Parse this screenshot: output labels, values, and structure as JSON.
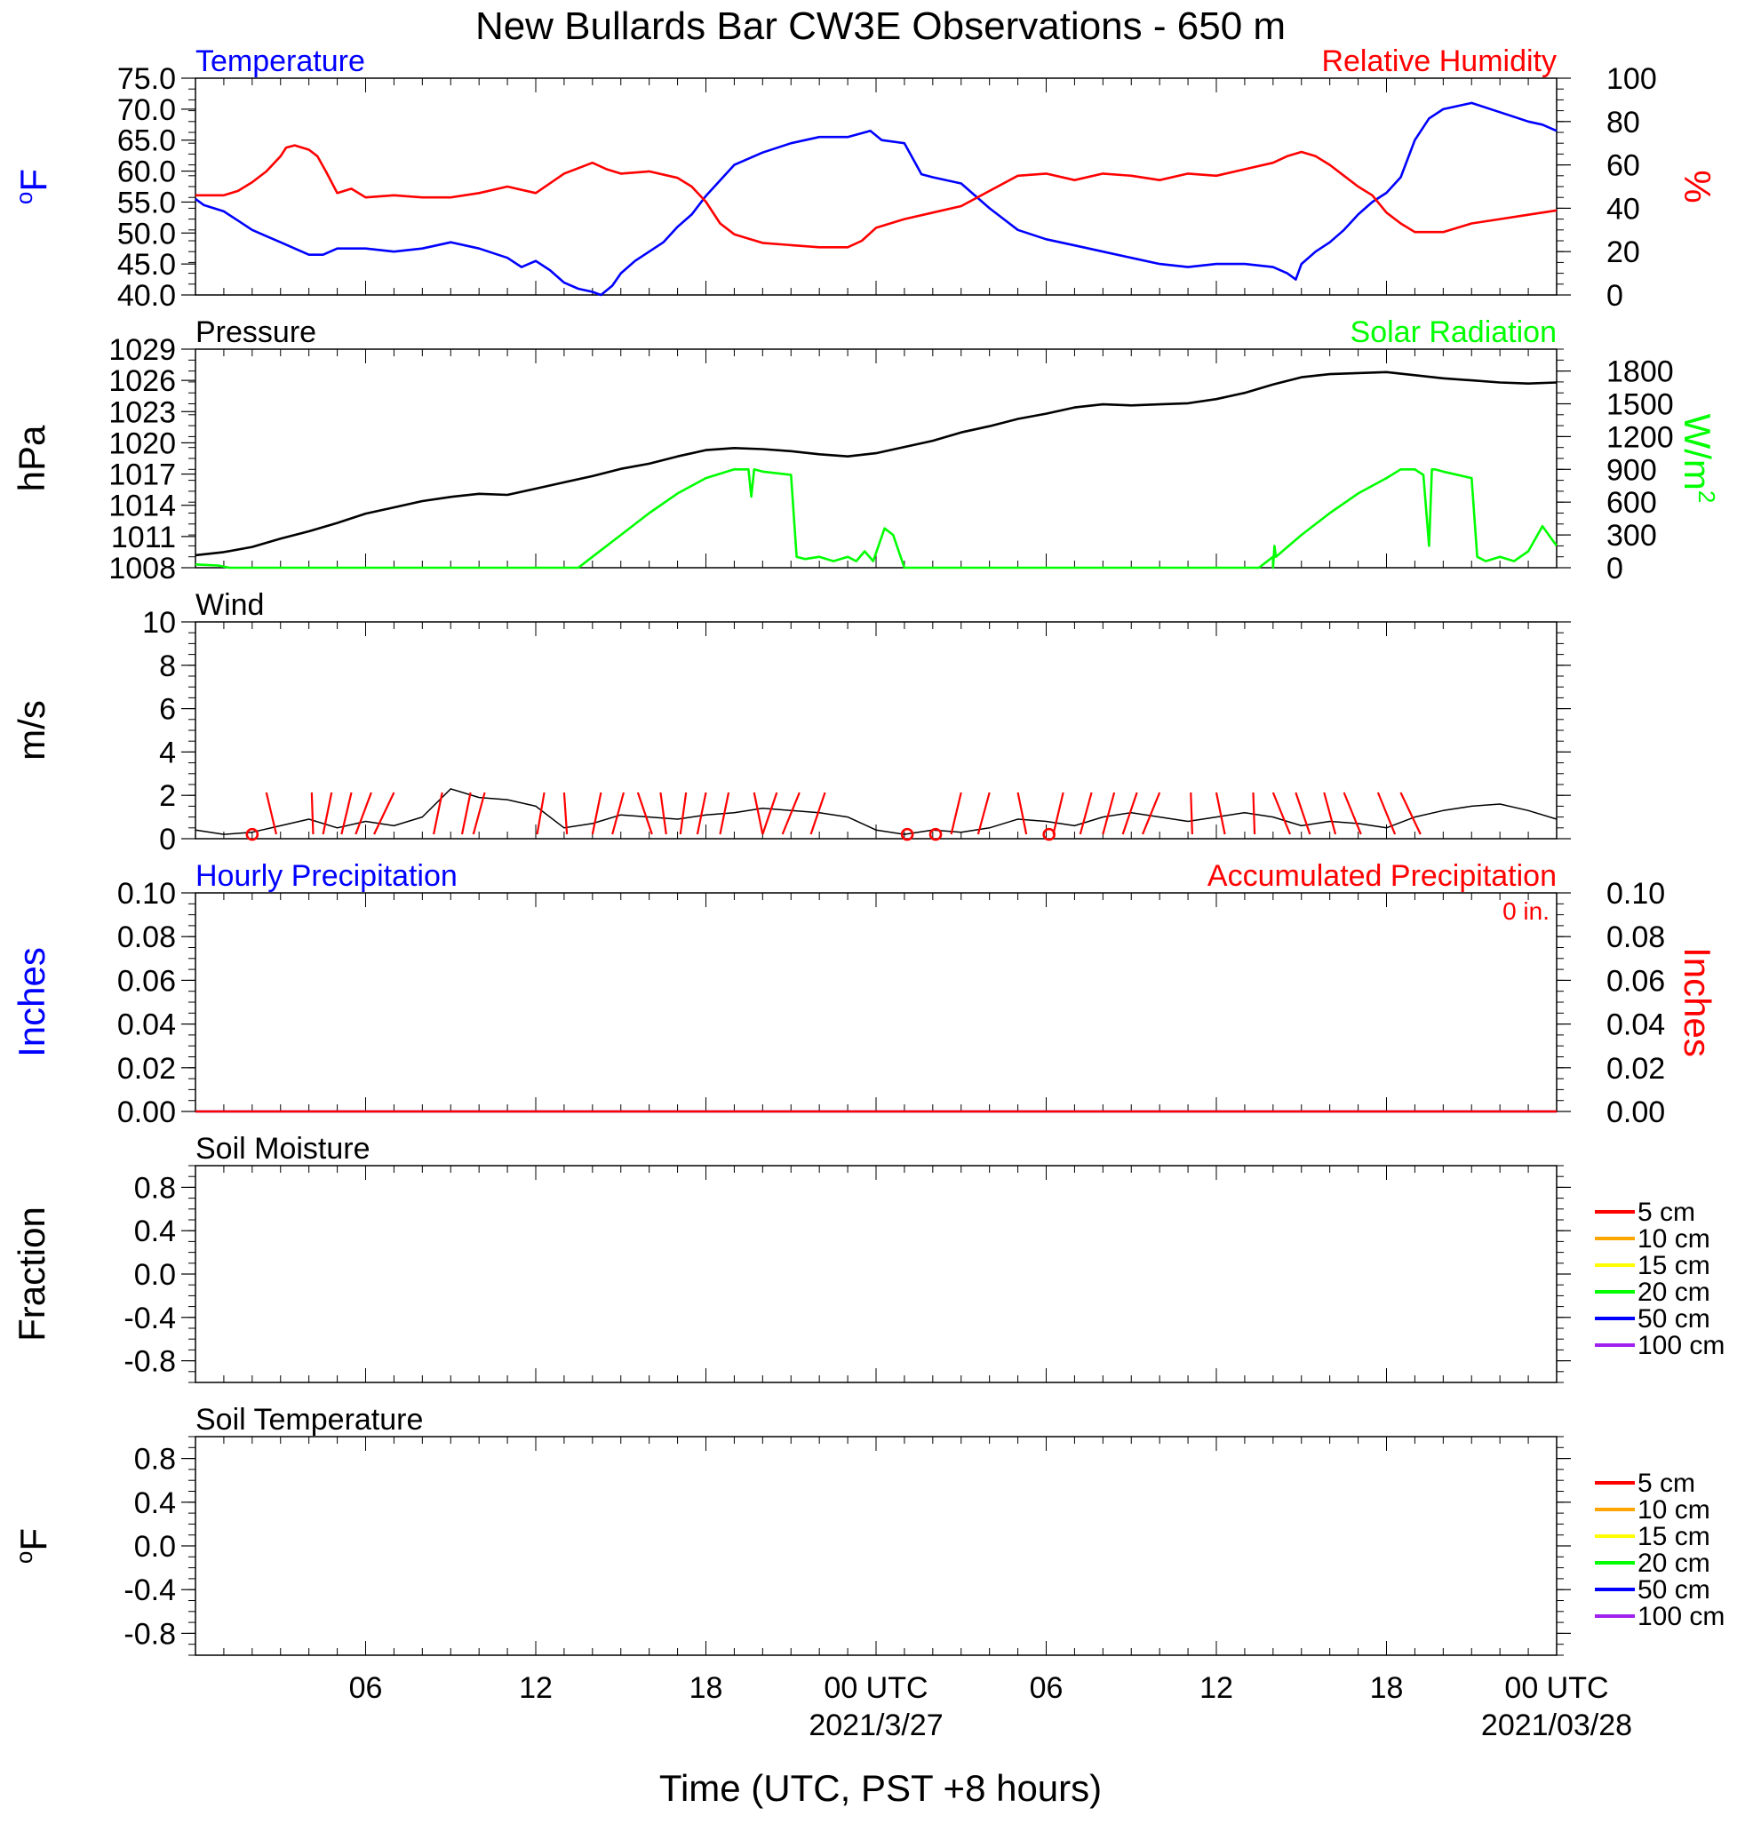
{
  "title": "New Bullards Bar CW3E Observations - 650 m",
  "xlabel": "Time (UTC, PST +8 hours)",
  "x_axis": {
    "unit": "hours since 2021-03-26 00 UTC",
    "range": [
      0,
      48
    ],
    "tick_hours": [
      6,
      12,
      18,
      24,
      30,
      36,
      42,
      48
    ],
    "tick_labels": [
      "06",
      "12",
      "18",
      "00 UTC",
      "06",
      "12",
      "18",
      "00 UTC"
    ],
    "date_labels": [
      {
        "hour": 24,
        "text": "2021/3/27"
      },
      {
        "hour": 48,
        "text": "2021/03/28"
      }
    ]
  },
  "colors": {
    "temperature": "#0000ff",
    "humidity": "#ff0000",
    "pressure": "#000000",
    "solar": "#00ff00",
    "wind": "#000000",
    "barb": "#ff0000",
    "precip_hourly": "#0000ff",
    "precip_accum": "#ff0000",
    "soil_5": "#ff0000",
    "soil_10": "#ffa500",
    "soil_15": "#ffff00",
    "soil_20": "#00ff00",
    "soil_50": "#0000ff",
    "soil_100": "#a020f0"
  },
  "chart_data": [
    {
      "id": "temp-rh",
      "type": "line",
      "left_title": "Temperature",
      "right_title": "Relative Humidity",
      "left_ylabel": "oF",
      "right_ylabel": "%",
      "left_ylim": [
        40,
        75
      ],
      "left_ticks": [
        "40.0",
        "45.0",
        "50.0",
        "55.0",
        "60.0",
        "65.0",
        "70.0",
        "75.0"
      ],
      "right_ylim": [
        0,
        100
      ],
      "right_ticks": [
        "0",
        "20",
        "40",
        "60",
        "80",
        "100"
      ],
      "series": [
        {
          "key": "temperature",
          "axis": "left",
          "x": [
            0,
            0.3,
            1,
            1.5,
            2,
            2.5,
            3,
            3.5,
            4,
            4.5,
            5,
            6,
            7,
            8,
            9,
            10,
            11,
            11.5,
            12,
            12.5,
            13,
            13.5,
            14,
            14.3,
            14.7,
            15,
            15.5,
            16,
            16.5,
            17,
            17.5,
            18,
            18.5,
            19,
            20,
            21,
            22,
            23,
            23.8,
            24.2,
            25,
            25.3,
            25.6,
            26,
            27,
            28,
            29,
            30,
            31,
            32,
            33,
            34,
            35,
            36,
            37,
            38,
            38.5,
            38.8,
            39,
            39.5,
            40,
            40.5,
            41,
            41.5,
            42,
            42.5,
            43,
            43.5,
            44,
            44.5,
            45,
            46,
            47,
            47.5,
            48
          ],
          "y": [
            55.5,
            54.5,
            53.5,
            52,
            50.5,
            49.5,
            48.5,
            47.5,
            46.5,
            46.5,
            47.5,
            47.5,
            47,
            47.5,
            48.5,
            47.5,
            46,
            44.5,
            45.5,
            44,
            42,
            41,
            40.5,
            40,
            41.5,
            43.5,
            45.5,
            47,
            48.5,
            51,
            53,
            56,
            58.5,
            61,
            63,
            64.5,
            65.5,
            65.5,
            66.5,
            65,
            64.5,
            62,
            59.5,
            59,
            58,
            54,
            50.5,
            49,
            48,
            47,
            46,
            45,
            44.5,
            45,
            45,
            44.5,
            43.5,
            42.5,
            45,
            47,
            48.5,
            50.5,
            53,
            55,
            56.5,
            59,
            65,
            68.5,
            70,
            70.5,
            71,
            69.5,
            68,
            67.5,
            66.5
          ]
        },
        {
          "key": "humidity",
          "axis": "right",
          "x": [
            0,
            1,
            1.5,
            2,
            2.5,
            3,
            3.2,
            3.5,
            4,
            4.3,
            4.6,
            5,
            5.5,
            6,
            7,
            8,
            9,
            10,
            11,
            12,
            13,
            14,
            14.5,
            15,
            16,
            17,
            17.5,
            18,
            18.5,
            19,
            20,
            21,
            22,
            22.5,
            23,
            23.5,
            24,
            25,
            26,
            27,
            28,
            29,
            30,
            31,
            32,
            33,
            34,
            35,
            36,
            37,
            38,
            38.5,
            39,
            39.5,
            40,
            40.5,
            41,
            41.5,
            42,
            42.5,
            43,
            44,
            45,
            46,
            47,
            48
          ],
          "y": [
            46,
            46,
            48,
            52,
            57,
            64,
            68,
            69,
            67,
            64,
            57,
            47,
            49,
            45,
            46,
            45,
            45,
            47,
            50,
            47,
            56,
            61,
            58,
            56,
            57,
            54,
            50,
            43,
            33,
            28,
            24,
            23,
            22,
            22,
            22,
            25,
            31,
            35,
            38,
            41,
            48,
            55,
            56,
            53,
            56,
            55,
            53,
            56,
            55,
            58,
            61,
            64,
            66,
            64,
            60,
            55,
            50,
            46,
            38,
            33,
            29,
            29,
            33,
            35,
            37,
            39
          ]
        }
      ]
    },
    {
      "id": "pressure-solar",
      "type": "line",
      "left_title": "Pressure",
      "right_title": "Solar Radiation",
      "left_ylabel": "hPa",
      "right_ylabel": "W/m",
      "right_ylabel_sup": "2",
      "left_ylim": [
        1008,
        1029
      ],
      "left_ticks": [
        "1008",
        "1011",
        "1014",
        "1017",
        "1020",
        "1023",
        "1026",
        "1029"
      ],
      "right_ylim": [
        0,
        2000
      ],
      "right_ticks": [
        "0",
        "300",
        "600",
        "900",
        "1200",
        "1500",
        "1800"
      ],
      "series": [
        {
          "key": "pressure",
          "axis": "left",
          "x": [
            0,
            1,
            2,
            3,
            4,
            5,
            6,
            7,
            8,
            9,
            10,
            11,
            12,
            13,
            14,
            15,
            16,
            17,
            18,
            19,
            20,
            21,
            22,
            23,
            24,
            25,
            26,
            27,
            28,
            29,
            30,
            31,
            32,
            33,
            34,
            35,
            36,
            37,
            38,
            39,
            40,
            41,
            42,
            43,
            44,
            45,
            46,
            47,
            48
          ],
          "y": [
            1009.2,
            1009.5,
            1010,
            1010.8,
            1011.5,
            1012.3,
            1013.2,
            1013.8,
            1014.4,
            1014.8,
            1015.1,
            1015.0,
            1015.6,
            1016.2,
            1016.8,
            1017.5,
            1018.0,
            1018.7,
            1019.3,
            1019.5,
            1019.4,
            1019.2,
            1018.9,
            1018.7,
            1019.0,
            1019.6,
            1020.2,
            1021.0,
            1021.6,
            1022.3,
            1022.8,
            1023.4,
            1023.7,
            1023.6,
            1023.7,
            1023.8,
            1024.2,
            1024.8,
            1025.6,
            1026.3,
            1026.6,
            1026.7,
            1026.8,
            1026.5,
            1026.2,
            1026.0,
            1025.8,
            1025.7,
            1025.8
          ]
        },
        {
          "key": "solar",
          "axis": "right",
          "x": [
            0,
            0.8,
            1.2,
            13.5,
            14,
            15,
            16,
            17,
            18,
            19,
            19.5,
            19.6,
            19.7,
            20,
            21,
            21.2,
            21.5,
            22,
            22.5,
            23,
            23.3,
            23.6,
            23.9,
            24.3,
            24.6,
            25,
            26,
            37.5,
            38,
            38,
            38.05,
            38.1,
            39,
            40,
            41,
            42,
            42.5,
            43,
            43.3,
            43.5,
            43.6,
            43.7,
            44,
            45,
            45.2,
            45.5,
            46,
            46.5,
            47,
            47.5,
            48
          ],
          "y": [
            30,
            20,
            0,
            0,
            100,
            300,
            500,
            680,
            820,
            900,
            900,
            650,
            900,
            880,
            850,
            100,
            80,
            100,
            60,
            100,
            60,
            150,
            60,
            360,
            300,
            0,
            0,
            0,
            100,
            0,
            200,
            100,
            300,
            500,
            680,
            820,
            900,
            900,
            850,
            200,
            900,
            900,
            880,
            820,
            100,
            60,
            100,
            60,
            150,
            380,
            200
          ]
        }
      ]
    },
    {
      "id": "wind",
      "type": "line",
      "left_title": "Wind",
      "left_ylabel": "m/s",
      "left_ylim": [
        0,
        10
      ],
      "left_ticks": [
        "0",
        "2",
        "4",
        "6",
        "8",
        "10"
      ],
      "series": [
        {
          "key": "wind",
          "axis": "left",
          "x": [
            0,
            1,
            2,
            3,
            4,
            5,
            6,
            7,
            8,
            9,
            10,
            11,
            12,
            13,
            14,
            15,
            16,
            17,
            18,
            19,
            20,
            21,
            22,
            23,
            24,
            25,
            26,
            27,
            28,
            29,
            30,
            31,
            32,
            33,
            34,
            35,
            36,
            37,
            38,
            39,
            40,
            41,
            42,
            43,
            44,
            45,
            46,
            47,
            48
          ],
          "y": [
            0.4,
            0.2,
            0.3,
            0.6,
            0.9,
            0.5,
            0.8,
            0.6,
            1.0,
            2.3,
            1.9,
            1.8,
            1.5,
            0.5,
            0.7,
            1.1,
            1.0,
            0.9,
            1.1,
            1.2,
            1.4,
            1.3,
            1.2,
            1.0,
            0.4,
            0.2,
            0.4,
            0.3,
            0.5,
            0.9,
            0.8,
            0.6,
            1.0,
            1.2,
            1.0,
            0.8,
            1.0,
            1.2,
            1.0,
            0.6,
            0.8,
            0.7,
            0.5,
            1.0,
            1.3,
            1.5,
            1.6,
            1.3,
            0.9
          ]
        }
      ],
      "barbs_dx_hours": [
        0.35,
        0.05,
        -0.3,
        -0.35,
        -0.55,
        -0.7,
        -0.3,
        -0.3,
        -0.4,
        -0.25,
        0.1,
        -0.3,
        -0.4,
        0.5,
        0.2,
        -0.2,
        -0.3,
        -0.3,
        0.3,
        -0.5,
        -0.6,
        -0.5,
        -0.35,
        -0.4,
        0.3,
        -0.35,
        -0.4,
        -0.4,
        -0.5,
        -0.6,
        0.05,
        0.3,
        0.05,
        0.6,
        0.5,
        0.4,
        0.6,
        0.6,
        0.7
      ],
      "barbs_x_hours": [
        2.5,
        4.1,
        4.8,
        5.5,
        6.2,
        7.0,
        8.7,
        9.7,
        10.2,
        12.3,
        13.0,
        14.3,
        15.1,
        15.6,
        16.4,
        17.3,
        18.0,
        18.8,
        19.7,
        20.5,
        21.3,
        22.2,
        27.0,
        28.0,
        29.0,
        30.6,
        31.6,
        32.4,
        33.2,
        34.0,
        35.1,
        36.0,
        37.3,
        38.0,
        38.8,
        39.8,
        40.5,
        41.7,
        42.5
      ],
      "calm_x_hours": [
        2.0,
        25.1,
        26.1,
        30.1
      ]
    },
    {
      "id": "precip",
      "type": "line",
      "left_title": "Hourly Precipitation",
      "right_title": "Accumulated Precipitation",
      "annotation": "0 in.",
      "left_ylabel": "Inches",
      "right_ylabel": "Inches",
      "left_ylim": [
        0,
        0.1
      ],
      "left_ticks": [
        "0.00",
        "0.02",
        "0.04",
        "0.06",
        "0.08",
        "0.10"
      ],
      "right_ylim": [
        0,
        0.1
      ],
      "right_ticks": [
        "0.00",
        "0.02",
        "0.04",
        "0.06",
        "0.08",
        "0.10"
      ],
      "series": [
        {
          "key": "precip_hourly",
          "axis": "left",
          "x": [
            0,
            48
          ],
          "y": [
            0,
            0
          ]
        },
        {
          "key": "precip_accum",
          "axis": "right",
          "x": [
            0,
            48
          ],
          "y": [
            0,
            0
          ]
        }
      ]
    },
    {
      "id": "soil-moisture",
      "type": "line",
      "left_title": "Soil Moisture",
      "left_ylabel": "Fraction",
      "left_ylim": [
        -1,
        1
      ],
      "left_ticks": [
        "-0.8",
        "-0.4",
        "0.0",
        "0.4",
        "0.8"
      ],
      "legend": [
        "5 cm",
        "10 cm",
        "15 cm",
        "20 cm",
        "50 cm",
        "100 cm"
      ],
      "series": []
    },
    {
      "id": "soil-temp",
      "type": "line",
      "left_title": "Soil Temperature",
      "left_ylabel": "oF",
      "left_ylim": [
        -1,
        1
      ],
      "left_ticks": [
        "-0.8",
        "-0.4",
        "0.0",
        "0.4",
        "0.8"
      ],
      "legend": [
        "5 cm",
        "10 cm",
        "15 cm",
        "20 cm",
        "50 cm",
        "100 cm"
      ],
      "series": []
    }
  ]
}
